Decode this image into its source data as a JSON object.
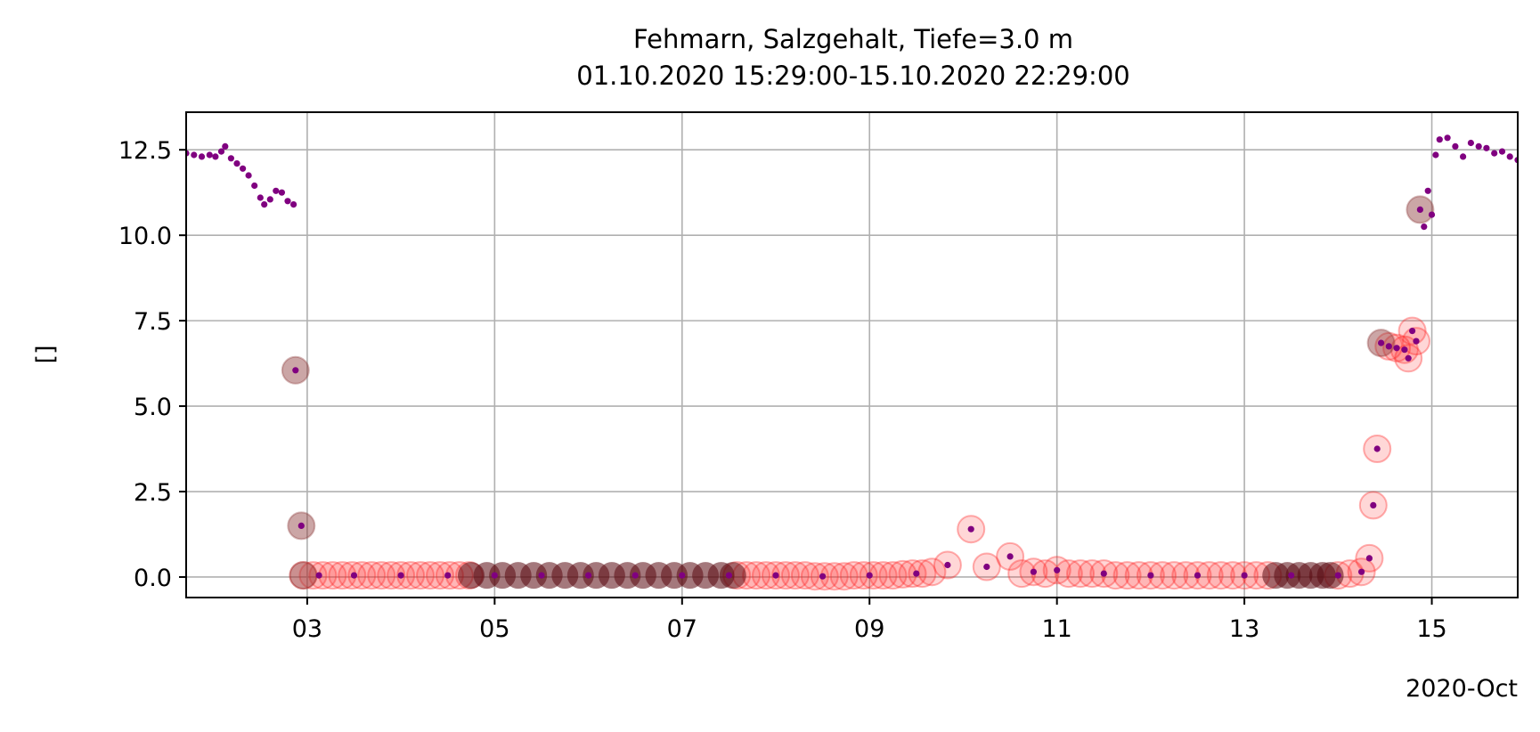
{
  "chart_data": {
    "type": "scatter",
    "title": "Fehmarn, Salzgehalt, Tiefe=3.0 m",
    "subtitle": "01.10.2020 15:29:00-15.10.2020 22:29:00",
    "xlabel": "",
    "ylabel": "[]",
    "x_axis_type": "date",
    "xlim": [
      "2020-10-01T17:00",
      "2020-10-15T22:00"
    ],
    "ylim": [
      -0.6,
      13.6
    ],
    "x_ticks": [
      "03",
      "05",
      "07",
      "09",
      "11",
      "13",
      "15"
    ],
    "x_tick_dates": [
      "2020-10-03",
      "2020-10-05",
      "2020-10-07",
      "2020-10-09",
      "2020-10-11",
      "2020-10-13",
      "2020-10-15"
    ],
    "x_offset_label": "2020-Oct",
    "y_ticks": [
      "0.0",
      "2.5",
      "5.0",
      "7.5",
      "10.0",
      "12.5"
    ],
    "y_tick_values": [
      0,
      2.5,
      5,
      7.5,
      10,
      12.5
    ],
    "grid": true,
    "colors": {
      "data_point": "#800080",
      "flag_red": "#ff2020",
      "flag_dark": "#5a0a10",
      "flag_brown": "#8b3a3a",
      "grid": "#b0b0b0"
    },
    "series": [
      {
        "marker": "small-dot",
        "color": "#800080",
        "points": [
          [
            "2020-10-01T17:00",
            12.4
          ],
          [
            "2020-10-01T19:00",
            12.35
          ],
          [
            "2020-10-01T21:00",
            12.3
          ],
          [
            "2020-10-01T23:00",
            12.35
          ],
          [
            "2020-10-02T00:30",
            12.3
          ],
          [
            "2020-10-02T02:00",
            12.45
          ],
          [
            "2020-10-02T03:00",
            12.6
          ],
          [
            "2020-10-02T04:30",
            12.25
          ],
          [
            "2020-10-02T06:00",
            12.1
          ],
          [
            "2020-10-02T07:30",
            11.95
          ],
          [
            "2020-10-02T09:00",
            11.75
          ],
          [
            "2020-10-02T10:30",
            11.45
          ],
          [
            "2020-10-02T12:00",
            11.1
          ],
          [
            "2020-10-02T13:00",
            10.9
          ],
          [
            "2020-10-02T14:30",
            11.05
          ],
          [
            "2020-10-02T16:00",
            11.3
          ],
          [
            "2020-10-02T17:30",
            11.25
          ],
          [
            "2020-10-02T19:00",
            11.0
          ],
          [
            "2020-10-02T20:30",
            10.9
          ],
          [
            "2020-10-02T21:00",
            6.05
          ],
          [
            "2020-10-02T22:30",
            1.5
          ],
          [
            "2020-10-03T03:00",
            0.05
          ],
          [
            "2020-10-03T12:00",
            0.05
          ],
          [
            "2020-10-04T00:00",
            0.05
          ],
          [
            "2020-10-04T12:00",
            0.05
          ],
          [
            "2020-10-05T00:00",
            0.05
          ],
          [
            "2020-10-05T12:00",
            0.05
          ],
          [
            "2020-10-06T00:00",
            0.05
          ],
          [
            "2020-10-06T12:00",
            0.05
          ],
          [
            "2020-10-07T00:00",
            0.05
          ],
          [
            "2020-10-07T12:00",
            0.05
          ],
          [
            "2020-10-08T00:00",
            0.05
          ],
          [
            "2020-10-08T12:00",
            0.02
          ],
          [
            "2020-10-09T00:00",
            0.05
          ],
          [
            "2020-10-09T12:00",
            0.1
          ],
          [
            "2020-10-09T20:00",
            0.35
          ],
          [
            "2020-10-10T02:00",
            1.4
          ],
          [
            "2020-10-10T06:00",
            0.3
          ],
          [
            "2020-10-10T12:00",
            0.6
          ],
          [
            "2020-10-10T18:00",
            0.15
          ],
          [
            "2020-10-11T00:00",
            0.2
          ],
          [
            "2020-10-11T12:00",
            0.1
          ],
          [
            "2020-10-12T00:00",
            0.05
          ],
          [
            "2020-10-12T12:00",
            0.05
          ],
          [
            "2020-10-13T00:00",
            0.05
          ],
          [
            "2020-10-13T12:00",
            0.05
          ],
          [
            "2020-10-14T00:00",
            0.05
          ],
          [
            "2020-10-14T06:00",
            0.15
          ],
          [
            "2020-10-14T08:00",
            0.55
          ],
          [
            "2020-10-14T09:00",
            2.1
          ],
          [
            "2020-10-14T10:00",
            3.75
          ],
          [
            "2020-10-14T11:00",
            6.85
          ],
          [
            "2020-10-14T13:00",
            6.75
          ],
          [
            "2020-10-14T15:00",
            6.7
          ],
          [
            "2020-10-14T17:00",
            6.65
          ],
          [
            "2020-10-14T18:00",
            6.4
          ],
          [
            "2020-10-14T19:00",
            7.2
          ],
          [
            "2020-10-14T20:00",
            6.9
          ],
          [
            "2020-10-14T21:00",
            10.75
          ],
          [
            "2020-10-14T22:00",
            10.25
          ],
          [
            "2020-10-14T23:00",
            11.3
          ],
          [
            "2020-10-15T00:00",
            10.6
          ],
          [
            "2020-10-15T01:00",
            12.35
          ],
          [
            "2020-10-15T02:00",
            12.8
          ],
          [
            "2020-10-15T04:00",
            12.85
          ],
          [
            "2020-10-15T06:00",
            12.6
          ],
          [
            "2020-10-15T08:00",
            12.3
          ],
          [
            "2020-10-15T10:00",
            12.7
          ],
          [
            "2020-10-15T12:00",
            12.6
          ],
          [
            "2020-10-15T14:00",
            12.55
          ],
          [
            "2020-10-15T16:00",
            12.4
          ],
          [
            "2020-10-15T18:00",
            12.45
          ],
          [
            "2020-10-15T20:00",
            12.3
          ],
          [
            "2020-10-15T22:00",
            12.2
          ]
        ]
      },
      {
        "marker": "flag-circle",
        "color": "#ff2020",
        "points": [
          [
            "2020-10-02T23:00",
            0.05
          ],
          [
            "2020-10-03T01:30",
            0.05
          ],
          [
            "2020-10-03T04:00",
            0.05
          ],
          [
            "2020-10-03T06:30",
            0.05
          ],
          [
            "2020-10-03T09:00",
            0.05
          ],
          [
            "2020-10-03T11:30",
            0.05
          ],
          [
            "2020-10-03T14:00",
            0.05
          ],
          [
            "2020-10-03T16:30",
            0.05
          ],
          [
            "2020-10-03T19:00",
            0.05
          ],
          [
            "2020-10-03T21:30",
            0.05
          ],
          [
            "2020-10-04T00:00",
            0.05
          ],
          [
            "2020-10-04T02:30",
            0.05
          ],
          [
            "2020-10-04T05:00",
            0.05
          ],
          [
            "2020-10-04T07:30",
            0.05
          ],
          [
            "2020-10-04T10:00",
            0.05
          ],
          [
            "2020-10-04T12:30",
            0.05
          ],
          [
            "2020-10-04T15:00",
            0.05
          ],
          [
            "2020-10-04T17:30",
            0.05
          ],
          [
            "2020-10-07T14:00",
            0.05
          ],
          [
            "2020-10-07T16:30",
            0.05
          ],
          [
            "2020-10-07T19:00",
            0.05
          ],
          [
            "2020-10-07T21:30",
            0.05
          ],
          [
            "2020-10-08T00:00",
            0.05
          ],
          [
            "2020-10-08T02:30",
            0.05
          ],
          [
            "2020-10-08T05:00",
            0.05
          ],
          [
            "2020-10-08T07:30",
            0.05
          ],
          [
            "2020-10-08T10:00",
            0.02
          ],
          [
            "2020-10-08T12:30",
            0.02
          ],
          [
            "2020-10-08T15:00",
            0.02
          ],
          [
            "2020-10-08T17:30",
            0.02
          ],
          [
            "2020-10-08T20:00",
            0.05
          ],
          [
            "2020-10-08T22:30",
            0.05
          ],
          [
            "2020-10-09T01:00",
            0.05
          ],
          [
            "2020-10-09T03:30",
            0.05
          ],
          [
            "2020-10-09T06:00",
            0.05
          ],
          [
            "2020-10-09T08:30",
            0.08
          ],
          [
            "2020-10-09T11:00",
            0.1
          ],
          [
            "2020-10-09T13:30",
            0.1
          ],
          [
            "2020-10-09T16:00",
            0.15
          ],
          [
            "2020-10-09T20:00",
            0.35
          ],
          [
            "2020-10-10T02:00",
            1.4
          ],
          [
            "2020-10-10T06:00",
            0.3
          ],
          [
            "2020-10-10T12:00",
            0.6
          ],
          [
            "2020-10-10T15:00",
            0.1
          ],
          [
            "2020-10-10T18:00",
            0.15
          ],
          [
            "2020-10-10T21:00",
            0.1
          ],
          [
            "2020-10-11T00:00",
            0.2
          ],
          [
            "2020-10-11T03:00",
            0.1
          ],
          [
            "2020-10-11T06:00",
            0.1
          ],
          [
            "2020-10-11T09:00",
            0.1
          ],
          [
            "2020-10-11T12:00",
            0.1
          ],
          [
            "2020-10-11T15:00",
            0.05
          ],
          [
            "2020-10-11T18:00",
            0.05
          ],
          [
            "2020-10-11T21:00",
            0.05
          ],
          [
            "2020-10-12T00:00",
            0.05
          ],
          [
            "2020-10-12T03:00",
            0.05
          ],
          [
            "2020-10-12T06:00",
            0.05
          ],
          [
            "2020-10-12T09:00",
            0.05
          ],
          [
            "2020-10-12T12:00",
            0.05
          ],
          [
            "2020-10-12T15:00",
            0.05
          ],
          [
            "2020-10-12T18:00",
            0.05
          ],
          [
            "2020-10-12T21:00",
            0.05
          ],
          [
            "2020-10-13T00:00",
            0.05
          ],
          [
            "2020-10-13T03:00",
            0.05
          ],
          [
            "2020-10-13T06:00",
            0.05
          ],
          [
            "2020-10-14T00:00",
            0.05
          ],
          [
            "2020-10-14T03:00",
            0.1
          ],
          [
            "2020-10-14T06:00",
            0.15
          ],
          [
            "2020-10-14T08:00",
            0.55
          ],
          [
            "2020-10-14T09:00",
            2.1
          ],
          [
            "2020-10-14T10:00",
            3.75
          ],
          [
            "2020-10-14T13:00",
            6.75
          ],
          [
            "2020-10-14T15:00",
            6.7
          ],
          [
            "2020-10-14T17:00",
            6.65
          ],
          [
            "2020-10-14T18:00",
            6.4
          ],
          [
            "2020-10-14T19:00",
            7.2
          ],
          [
            "2020-10-14T20:00",
            6.9
          ]
        ]
      },
      {
        "marker": "flag-dark-band",
        "color": "#5a0a10",
        "points": [
          [
            "2020-10-04T18:00",
            0.05
          ],
          [
            "2020-10-04T22:00",
            0.05
          ],
          [
            "2020-10-05T02:00",
            0.05
          ],
          [
            "2020-10-05T06:00",
            0.05
          ],
          [
            "2020-10-05T10:00",
            0.05
          ],
          [
            "2020-10-05T14:00",
            0.05
          ],
          [
            "2020-10-05T18:00",
            0.05
          ],
          [
            "2020-10-05T22:00",
            0.05
          ],
          [
            "2020-10-06T02:00",
            0.05
          ],
          [
            "2020-10-06T06:00",
            0.05
          ],
          [
            "2020-10-06T10:00",
            0.05
          ],
          [
            "2020-10-06T14:00",
            0.05
          ],
          [
            "2020-10-06T18:00",
            0.05
          ],
          [
            "2020-10-06T22:00",
            0.05
          ],
          [
            "2020-10-07T02:00",
            0.05
          ],
          [
            "2020-10-07T06:00",
            0.05
          ],
          [
            "2020-10-07T10:00",
            0.05
          ],
          [
            "2020-10-07T13:00",
            0.05
          ],
          [
            "2020-10-13T08:00",
            0.05
          ],
          [
            "2020-10-13T11:00",
            0.05
          ],
          [
            "2020-10-13T14:00",
            0.05
          ],
          [
            "2020-10-13T17:00",
            0.05
          ],
          [
            "2020-10-13T20:00",
            0.05
          ],
          [
            "2020-10-13T22:00",
            0.05
          ]
        ]
      },
      {
        "marker": "flag-brown-circle",
        "color": "#8b3a3a",
        "points": [
          [
            "2020-10-02T21:00",
            6.05
          ],
          [
            "2020-10-02T22:30",
            1.5
          ],
          [
            "2020-10-02T23:00",
            0.05
          ],
          [
            "2020-10-14T11:00",
            6.85
          ],
          [
            "2020-10-14T21:00",
            10.75
          ]
        ]
      }
    ]
  }
}
